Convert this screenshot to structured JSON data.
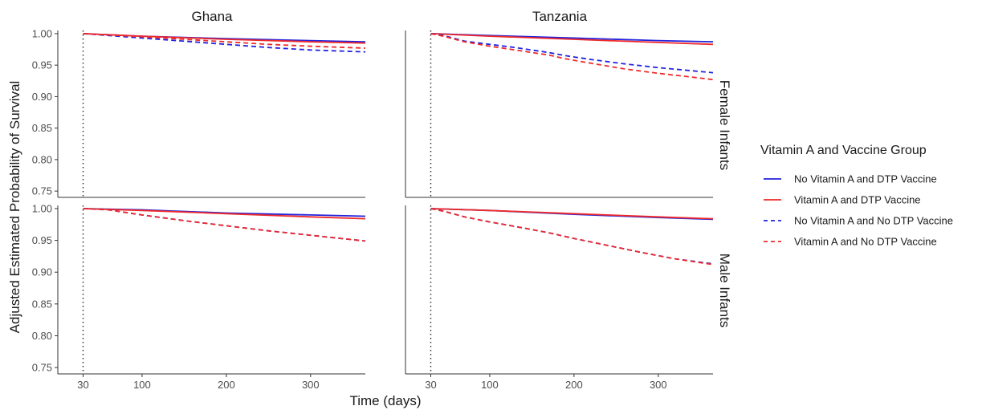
{
  "chart_data": {
    "type": "line",
    "title": "",
    "xlabel": "Time (days)",
    "ylabel": "Adjusted Estimated Probability of Survival",
    "columns": [
      "Ghana",
      "Tanzania"
    ],
    "rows": [
      "Female Infants",
      "Male Infants"
    ],
    "xlim": [
      0,
      365
    ],
    "ylim": [
      0.74,
      1.005
    ],
    "x_ticks": [
      30,
      100,
      200,
      300
    ],
    "y_ticks": [
      0.75,
      0.8,
      0.85,
      0.9,
      0.95,
      1.0
    ],
    "y_tick_labels": [
      "0.75",
      "0.80",
      "0.85",
      "0.90",
      "0.95",
      "1.00"
    ],
    "reference_line_x": 30,
    "legend": {
      "title": "Vitamin A and Vaccine Group",
      "placement": "right",
      "entries": [
        {
          "label": "No Vitamin A and DTP Vaccine",
          "color": "#2222dd",
          "dash": "solid"
        },
        {
          "label": "Vitamin A and DTP Vaccine",
          "color": "#ee2a2a",
          "dash": "solid"
        },
        {
          "label": "No Vitamin A and No DTP Vaccine",
          "color": "#2222dd",
          "dash": "dashed"
        },
        {
          "label": "Vitamin A and No DTP Vaccine",
          "color": "#ee2a2a",
          "dash": "dashed"
        }
      ]
    },
    "panels": [
      {
        "column": "Ghana",
        "row": "Female Infants",
        "series": [
          {
            "name": "No Vitamin A and DTP Vaccine",
            "x": [
              30,
              100,
              200,
              300,
              365
            ],
            "y": [
              1.0,
              0.996,
              0.992,
              0.989,
              0.987
            ]
          },
          {
            "name": "Vitamin A and DTP Vaccine",
            "x": [
              30,
              100,
              200,
              300,
              365
            ],
            "y": [
              1.0,
              0.996,
              0.991,
              0.987,
              0.985
            ]
          },
          {
            "name": "No Vitamin A and No DTP Vaccine",
            "x": [
              30,
              100,
              150,
              200,
              250,
              300,
              365
            ],
            "y": [
              1.0,
              0.993,
              0.988,
              0.983,
              0.978,
              0.974,
              0.971
            ]
          },
          {
            "name": "Vitamin A and No DTP Vaccine",
            "x": [
              30,
              100,
              150,
              200,
              250,
              300,
              365
            ],
            "y": [
              1.0,
              0.995,
              0.991,
              0.987,
              0.983,
              0.98,
              0.977
            ]
          }
        ]
      },
      {
        "column": "Tanzania",
        "row": "Female Infants",
        "series": [
          {
            "name": "No Vitamin A and DTP Vaccine",
            "x": [
              30,
              100,
              200,
              300,
              365
            ],
            "y": [
              1.0,
              0.997,
              0.993,
              0.989,
              0.987
            ]
          },
          {
            "name": "Vitamin A and DTP Vaccine",
            "x": [
              30,
              100,
              200,
              300,
              365
            ],
            "y": [
              1.0,
              0.996,
              0.991,
              0.986,
              0.983
            ]
          },
          {
            "name": "No Vitamin A and No DTP Vaccine",
            "x": [
              30,
              45,
              70,
              100,
              130,
              170,
              190,
              220,
              260,
              300,
              340,
              365
            ],
            "y": [
              1.0,
              0.997,
              0.988,
              0.983,
              0.978,
              0.97,
              0.965,
              0.959,
              0.952,
              0.946,
              0.941,
              0.938
            ]
          },
          {
            "name": "Vitamin A and No DTP Vaccine",
            "x": [
              30,
              45,
              70,
              100,
              130,
              170,
              190,
              220,
              260,
              300,
              340,
              365
            ],
            "y": [
              1.0,
              0.996,
              0.987,
              0.98,
              0.974,
              0.966,
              0.96,
              0.953,
              0.944,
              0.937,
              0.931,
              0.927
            ]
          }
        ]
      },
      {
        "column": "Ghana",
        "row": "Male Infants",
        "series": [
          {
            "name": "No Vitamin A and DTP Vaccine",
            "x": [
              30,
              100,
              200,
              300,
              365
            ],
            "y": [
              1.0,
              0.998,
              0.993,
              0.99,
              0.988
            ]
          },
          {
            "name": "Vitamin A and DTP Vaccine",
            "x": [
              30,
              100,
              200,
              300,
              365
            ],
            "y": [
              1.0,
              0.997,
              0.992,
              0.987,
              0.984
            ]
          },
          {
            "name": "No Vitamin A and No DTP Vaccine",
            "x": [
              30,
              60,
              100,
              150,
              200,
              250,
              300,
              365
            ],
            "y": [
              1.0,
              0.998,
              0.99,
              0.981,
              0.973,
              0.965,
              0.958,
              0.949
            ]
          },
          {
            "name": "Vitamin A and No DTP Vaccine",
            "x": [
              30,
              60,
              100,
              150,
              200,
              250,
              300,
              365
            ],
            "y": [
              1.0,
              0.998,
              0.99,
              0.981,
              0.973,
              0.965,
              0.958,
              0.949
            ]
          }
        ]
      },
      {
        "column": "Tanzania",
        "row": "Male Infants",
        "series": [
          {
            "name": "No Vitamin A and DTP Vaccine",
            "x": [
              30,
              100,
              200,
              300,
              365
            ],
            "y": [
              1.0,
              0.997,
              0.991,
              0.986,
              0.983
            ]
          },
          {
            "name": "Vitamin A and DTP Vaccine",
            "x": [
              30,
              100,
              200,
              300,
              365
            ],
            "y": [
              1.0,
              0.997,
              0.992,
              0.987,
              0.984
            ]
          },
          {
            "name": "No Vitamin A and No DTP Vaccine",
            "x": [
              30,
              45,
              70,
              100,
              130,
              170,
              200,
              240,
              280,
              320,
              365
            ],
            "y": [
              1.0,
              0.996,
              0.987,
              0.979,
              0.972,
              0.962,
              0.953,
              0.942,
              0.931,
              0.921,
              0.913
            ]
          },
          {
            "name": "Vitamin A and No DTP Vaccine",
            "x": [
              30,
              45,
              70,
              100,
              130,
              170,
              200,
              240,
              280,
              320,
              365
            ],
            "y": [
              1.0,
              0.996,
              0.987,
              0.979,
              0.972,
              0.962,
              0.953,
              0.942,
              0.931,
              0.921,
              0.912
            ]
          }
        ]
      }
    ]
  }
}
